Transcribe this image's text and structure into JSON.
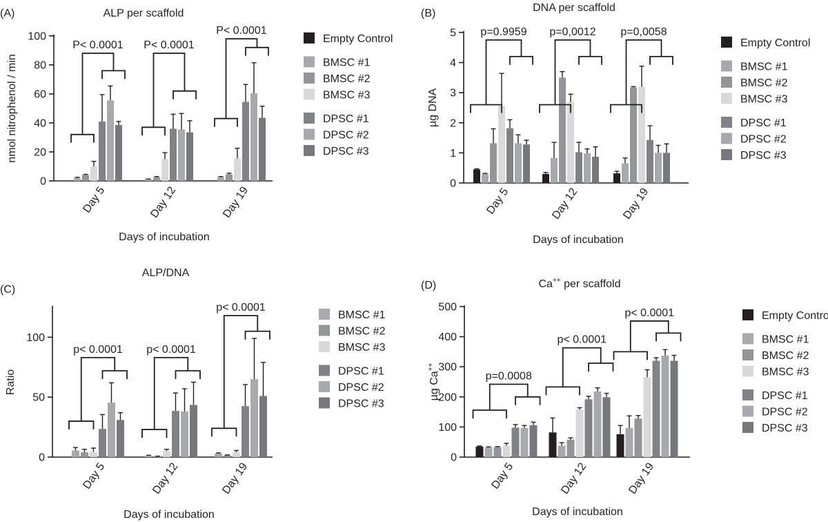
{
  "colors": {
    "empty_control": "#231f20",
    "bmsc1": "#a7a9ac",
    "bmsc2": "#939598",
    "bmsc3": "#d9d9da",
    "dpsc1": "#808285",
    "dpsc2": "#a7a9ac",
    "dpsc3": "#76787b",
    "axis": "#231f20"
  },
  "chart_data": [
    {
      "id": "A",
      "panel_label": "(A)",
      "type": "bar",
      "title": "ALP per scaffold",
      "xlabel": "Days of incubation",
      "ylabel": "nmol nitrophenol / min",
      "ylim": [
        0,
        100
      ],
      "yticks": [
        "0",
        "20",
        "40",
        "60",
        "80",
        "100"
      ],
      "categories": [
        "Day 5",
        "Day 12",
        "Day 19"
      ],
      "legend": [
        "Empty Control",
        "BMSC #1",
        "BMSC #2",
        "BMSC #3",
        "DPSC #1",
        "DPSC #2",
        "DPSC #3"
      ],
      "series": [
        {
          "name": "BMSC #1",
          "color_key": "bmsc1",
          "values": [
            2,
            1,
            2.5
          ],
          "errors": [
            0.5,
            0.3,
            0.5
          ]
        },
        {
          "name": "BMSC #2",
          "color_key": "bmsc2",
          "values": [
            4,
            2.5,
            4.5
          ],
          "errors": [
            0.5,
            0.5,
            0.8
          ]
        },
        {
          "name": "BMSC #3",
          "color_key": "bmsc3",
          "values": [
            10,
            15,
            15.5
          ],
          "errors": [
            3.5,
            4.5,
            7
          ]
        },
        {
          "name": "DPSC #1",
          "color_key": "dpsc1",
          "values": [
            41,
            36,
            54.5
          ],
          "errors": [
            18.5,
            10,
            12
          ]
        },
        {
          "name": "DPSC #2",
          "color_key": "dpsc2",
          "values": [
            55.5,
            35.5,
            60.5
          ],
          "errors": [
            10,
            11,
            21
          ]
        },
        {
          "name": "DPSC #3",
          "color_key": "dpsc3",
          "values": [
            38.5,
            33.5,
            43.5
          ],
          "errors": [
            2.5,
            8,
            8
          ]
        }
      ],
      "annotations": [
        {
          "text": "P< 0.0001",
          "group": 0,
          "bracket_low": 32,
          "bracket_high": 88,
          "split": 76
        },
        {
          "text": "P< 0.0001",
          "group": 1,
          "bracket_low": 37,
          "bracket_high": 88,
          "split": 62
        },
        {
          "text": "P< 0.0001",
          "group": 2,
          "bracket_low": 43,
          "bracket_high": 98,
          "split": 92
        }
      ]
    },
    {
      "id": "B",
      "panel_label": "(B)",
      "type": "bar",
      "title": "DNA per scaffold",
      "xlabel": "Days of incubation",
      "ylabel": "µg DNA",
      "ylim": [
        0,
        5
      ],
      "yticks": [
        "0",
        "1",
        "2",
        "3",
        "4",
        "5"
      ],
      "categories": [
        "Day 5",
        "Day 12",
        "Day 19"
      ],
      "legend": [
        "Empty Control",
        "BMSC #1",
        "BMSC #2",
        "BMSC #3",
        "DPSC #1",
        "DPSC #2",
        "DPSC #3"
      ],
      "series": [
        {
          "name": "Empty Control",
          "color_key": "empty_control",
          "values": [
            0.45,
            0.3,
            0.32
          ],
          "errors": [
            0.02,
            0.05,
            0.07
          ]
        },
        {
          "name": "BMSC #1",
          "color_key": "bmsc1",
          "values": [
            0.3,
            0.83,
            0.65
          ],
          "errors": [
            0.02,
            0.52,
            0.18
          ]
        },
        {
          "name": "BMSC #2",
          "color_key": "bmsc2",
          "values": [
            1.32,
            3.5,
            3.17
          ],
          "errors": [
            0.48,
            0.2,
            0.03
          ]
        },
        {
          "name": "BMSC #3",
          "color_key": "bmsc3",
          "values": [
            2.57,
            2.68,
            3.2
          ],
          "errors": [
            1.07,
            0.27,
            0.68
          ]
        },
        {
          "name": "DPSC #1",
          "color_key": "dpsc1",
          "values": [
            1.82,
            1.02,
            1.43
          ],
          "errors": [
            0.28,
            0.33,
            0.47
          ]
        },
        {
          "name": "DPSC #2",
          "color_key": "dpsc2",
          "values": [
            1.32,
            0.98,
            1.0
          ],
          "errors": [
            0.28,
            0.15,
            0.25
          ]
        },
        {
          "name": "DPSC #3",
          "color_key": "dpsc3",
          "values": [
            1.28,
            0.87,
            1.0
          ],
          "errors": [
            0.14,
            0.33,
            0.3
          ]
        }
      ],
      "annotations": [
        {
          "text": "p=0.9959",
          "group": 0,
          "bracket_low": 2.6,
          "bracket_high": 4.75,
          "split": 4.2
        },
        {
          "text": "p=0,0012",
          "group": 1,
          "bracket_low": 2.6,
          "bracket_high": 4.75,
          "split": 4.2
        },
        {
          "text": "p=0,0058",
          "group": 2,
          "bracket_low": 2.6,
          "bracket_high": 4.75,
          "split": 4.2
        }
      ]
    },
    {
      "id": "C",
      "panel_label": "(C)",
      "type": "bar",
      "title": "ALP/DNA",
      "xlabel": "Days of incubation",
      "ylabel": "Ratio",
      "ylim": [
        0,
        125
      ],
      "yticks": [
        "0",
        "50",
        "100"
      ],
      "ytick_values": [
        0,
        50,
        100
      ],
      "categories": [
        "Day 5",
        "Day 12",
        "Day 19"
      ],
      "legend": [
        "BMSC #1",
        "BMSC #2",
        "BMSC #3",
        "DPSC #1",
        "DPSC #2",
        "DPSC #3"
      ],
      "series": [
        {
          "name": "BMSC #1",
          "color_key": "bmsc1",
          "values": [
            5.5,
            1,
            3
          ],
          "errors": [
            2.5,
            0.5,
            0.5
          ]
        },
        {
          "name": "BMSC #2",
          "color_key": "bmsc2",
          "values": [
            4,
            0.5,
            1.5
          ],
          "errors": [
            2.5,
            0.3,
            0.3
          ]
        },
        {
          "name": "BMSC #3",
          "color_key": "bmsc3",
          "values": [
            4.5,
            5,
            4
          ],
          "errors": [
            3,
            1.5,
            1.5
          ]
        },
        {
          "name": "DPSC #1",
          "color_key": "dpsc1",
          "values": [
            23.5,
            38.5,
            42.5
          ],
          "errors": [
            12,
            15,
            18
          ]
        },
        {
          "name": "DPSC #2",
          "color_key": "dpsc2",
          "values": [
            45.5,
            38,
            65
          ],
          "errors": [
            16.5,
            19,
            34
          ]
        },
        {
          "name": "DPSC #3",
          "color_key": "dpsc3",
          "values": [
            31,
            43.5,
            51
          ],
          "errors": [
            6,
            19,
            28
          ]
        }
      ],
      "annotations": [
        {
          "text": "p< 0.0001",
          "group": 0,
          "bracket_low": 30,
          "bracket_high": 83,
          "split": 72
        },
        {
          "text": "p< 0.0001",
          "group": 1,
          "bracket_low": 23,
          "bracket_high": 83,
          "split": 72
        },
        {
          "text": "p< 0.0001",
          "group": 2,
          "bracket_low": 24,
          "bracket_high": 118,
          "split": 105
        }
      ]
    },
    {
      "id": "D",
      "panel_label": "(D)",
      "type": "bar",
      "title": "Ca",
      "title_superscript": "++",
      "title_suffix": " per scaffold",
      "xlabel": "Days of incubation",
      "ylabel": "µg Ca",
      "ylabel_superscript": "++",
      "ylim": [
        0,
        500
      ],
      "yticks": [
        "0",
        "100",
        "200",
        "300",
        "400",
        "500"
      ],
      "categories": [
        "Day 5",
        "Day 12",
        "Day 19"
      ],
      "legend": [
        "Empty Control",
        "BMSC #1",
        "BMSC #2",
        "BMSC #3",
        "DPSC #1",
        "DPSC #2",
        "DPSC #3"
      ],
      "series": [
        {
          "name": "Empty Control",
          "color_key": "empty_control",
          "values": [
            35,
            82,
            76
          ],
          "errors": [
            2,
            48,
            29
          ]
        },
        {
          "name": "BMSC #1",
          "color_key": "bmsc1",
          "values": [
            32,
            38,
            97
          ],
          "errors": [
            2,
            10,
            40
          ]
        },
        {
          "name": "BMSC #2",
          "color_key": "bmsc2",
          "values": [
            33,
            58,
            128
          ],
          "errors": [
            2,
            6,
            10
          ]
        },
        {
          "name": "BMSC #3",
          "color_key": "bmsc3",
          "values": [
            38,
            158,
            265
          ],
          "errors": [
            8,
            6,
            25
          ]
        },
        {
          "name": "DPSC #1",
          "color_key": "dpsc1",
          "values": [
            98,
            192,
            320
          ],
          "errors": [
            10,
            10,
            10
          ]
        },
        {
          "name": "DPSC #2",
          "color_key": "dpsc2",
          "values": [
            97,
            218,
            337
          ],
          "errors": [
            8,
            12,
            20
          ]
        },
        {
          "name": "DPSC #3",
          "color_key": "dpsc3",
          "values": [
            106,
            199,
            320
          ],
          "errors": [
            10,
            13,
            18
          ]
        }
      ],
      "annotations": [
        {
          "text": "p=0.0008",
          "group": 0,
          "bracket_low": 156,
          "bracket_high": 242,
          "split": 200
        },
        {
          "text": "p< 0.0001",
          "group": 1,
          "bracket_low": 233,
          "bracket_high": 363,
          "split": 312
        },
        {
          "text": "p< 0.0001",
          "group": 2,
          "bracket_low": 350,
          "bracket_high": 452,
          "split": 412
        }
      ]
    }
  ]
}
